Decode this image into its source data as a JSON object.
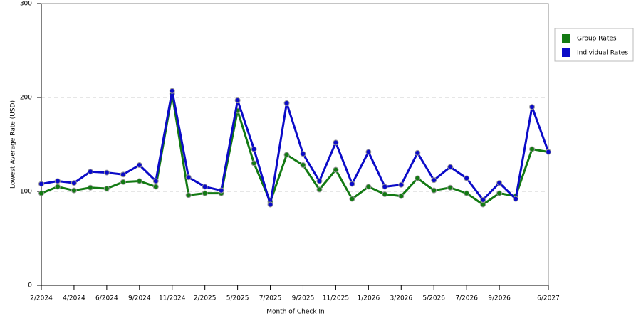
{
  "chart_data": {
    "type": "line",
    "x_label": "Month of Check In",
    "y_label": "Lowest Average Rate (USD)",
    "categories": [
      "2/2024",
      null,
      "4/2024",
      null,
      "6/2024",
      null,
      "9/2024",
      null,
      "11/2024",
      null,
      "2/2025",
      null,
      "5/2025",
      null,
      "7/2025",
      null,
      "9/2025",
      null,
      "11/2025",
      null,
      "1/2026",
      null,
      "3/2026",
      null,
      "5/2026",
      null,
      "7/2026",
      null,
      "9/2026",
      null,
      null,
      "6/2027"
    ],
    "series": [
      {
        "name": "Group Rates",
        "color": "#137a13",
        "values": [
          98,
          105,
          101,
          104,
          103,
          110,
          111,
          105,
          204,
          96,
          98,
          98,
          186,
          130,
          89,
          139,
          128,
          102,
          123,
          92,
          105,
          97,
          95,
          114,
          101,
          104,
          98,
          86,
          98,
          95,
          145,
          142
        ]
      },
      {
        "name": "Individual Rates",
        "color": "#0b0bc8",
        "values": [
          108,
          111,
          109,
          121,
          120,
          118,
          128,
          111,
          207,
          115,
          105,
          101,
          197,
          145,
          86,
          194,
          140,
          111,
          152,
          108,
          142,
          105,
          107,
          141,
          112,
          126,
          114,
          91,
          109,
          92,
          190,
          142
        ]
      }
    ],
    "ylim": [
      0,
      300
    ],
    "yticks": [
      0,
      100,
      200,
      300
    ],
    "grid": true,
    "legend": "right"
  }
}
